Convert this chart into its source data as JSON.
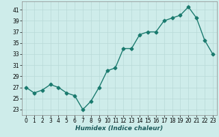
{
  "x": [
    0,
    1,
    2,
    3,
    4,
    5,
    6,
    7,
    8,
    9,
    10,
    11,
    12,
    13,
    14,
    15,
    16,
    17,
    18,
    19,
    20,
    21,
    22,
    23
  ],
  "y": [
    27,
    26,
    26.5,
    27.5,
    27,
    26,
    25.5,
    23,
    24.5,
    27,
    30,
    30.5,
    34,
    34,
    36.5,
    37,
    37,
    39,
    39.5,
    40,
    41.5,
    39.5,
    35.5,
    33
  ],
  "line_color": "#1a7a6e",
  "marker": "D",
  "markersize": 2.5,
  "linewidth": 1.0,
  "xlabel": "Humidex (Indice chaleur)",
  "xlim": [
    -0.5,
    23.5
  ],
  "ylim": [
    22,
    42.5
  ],
  "yticks": [
    23,
    25,
    27,
    29,
    31,
    33,
    35,
    37,
    39,
    41
  ],
  "xticks": [
    0,
    1,
    2,
    3,
    4,
    5,
    6,
    7,
    8,
    9,
    10,
    11,
    12,
    13,
    14,
    15,
    16,
    17,
    18,
    19,
    20,
    21,
    22,
    23
  ],
  "bg_color": "#ceecea",
  "grid_color": "#b8d8d6",
  "label_fontsize": 6.5,
  "tick_fontsize": 5.5
}
